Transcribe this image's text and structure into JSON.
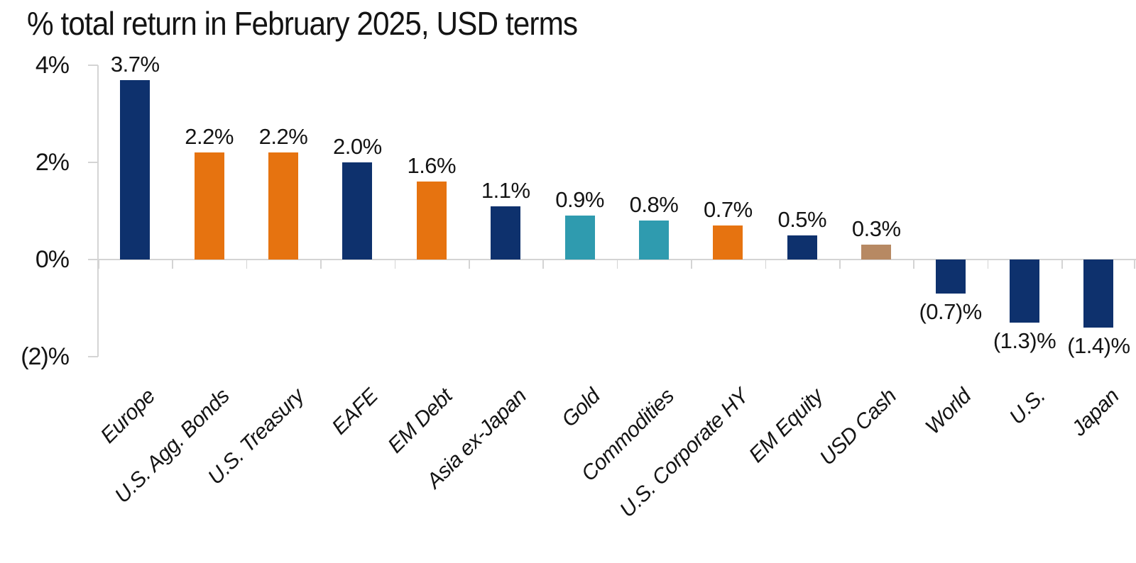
{
  "title": "% total return in February 2025, USD terms",
  "colors": {
    "navy": "#0e316d",
    "orange": "#e67310",
    "teal": "#2f9baf",
    "tan": "#b78963",
    "axis_line": "#d4d4d4",
    "text": "#141414"
  },
  "chart_data": {
    "type": "bar",
    "title": "% total return in February 2025, USD terms",
    "categories": [
      "Europe",
      "U.S. Agg. Bonds",
      "U.S. Treasury",
      "EAFE",
      "EM Debt",
      "Asia ex-Japan",
      "Gold",
      "Commodities",
      "U.S. Corporate HY",
      "EM Equity",
      "USD Cash",
      "World",
      "U.S.",
      "Japan"
    ],
    "values": [
      3.7,
      2.2,
      2.2,
      2.0,
      1.6,
      1.1,
      0.9,
      0.8,
      0.7,
      0.5,
      0.3,
      -0.7,
      -1.3,
      -1.4
    ],
    "value_labels": [
      "3.7%",
      "2.2%",
      "2.2%",
      "2.0%",
      "1.6%",
      "1.1%",
      "0.9%",
      "0.8%",
      "0.7%",
      "0.5%",
      "0.3%",
      "(0.7)%",
      "(1.3)%",
      "(1.4)%"
    ],
    "bar_color_names": [
      "navy",
      "orange",
      "orange",
      "navy",
      "orange",
      "navy",
      "teal",
      "teal",
      "orange",
      "navy",
      "tan",
      "navy",
      "navy",
      "navy"
    ],
    "xlabel": "",
    "ylabel": "",
    "y_ticks": [
      {
        "label": "4%",
        "value": 4
      },
      {
        "label": "2%",
        "value": 2
      },
      {
        "label": "0%",
        "value": 0
      },
      {
        "label": "(2)%",
        "value": -2
      }
    ],
    "ylim": [
      -2,
      4
    ],
    "grid": "off",
    "legend": "none",
    "value_label_position": "outside-end",
    "negative_number_format": "parentheses"
  }
}
